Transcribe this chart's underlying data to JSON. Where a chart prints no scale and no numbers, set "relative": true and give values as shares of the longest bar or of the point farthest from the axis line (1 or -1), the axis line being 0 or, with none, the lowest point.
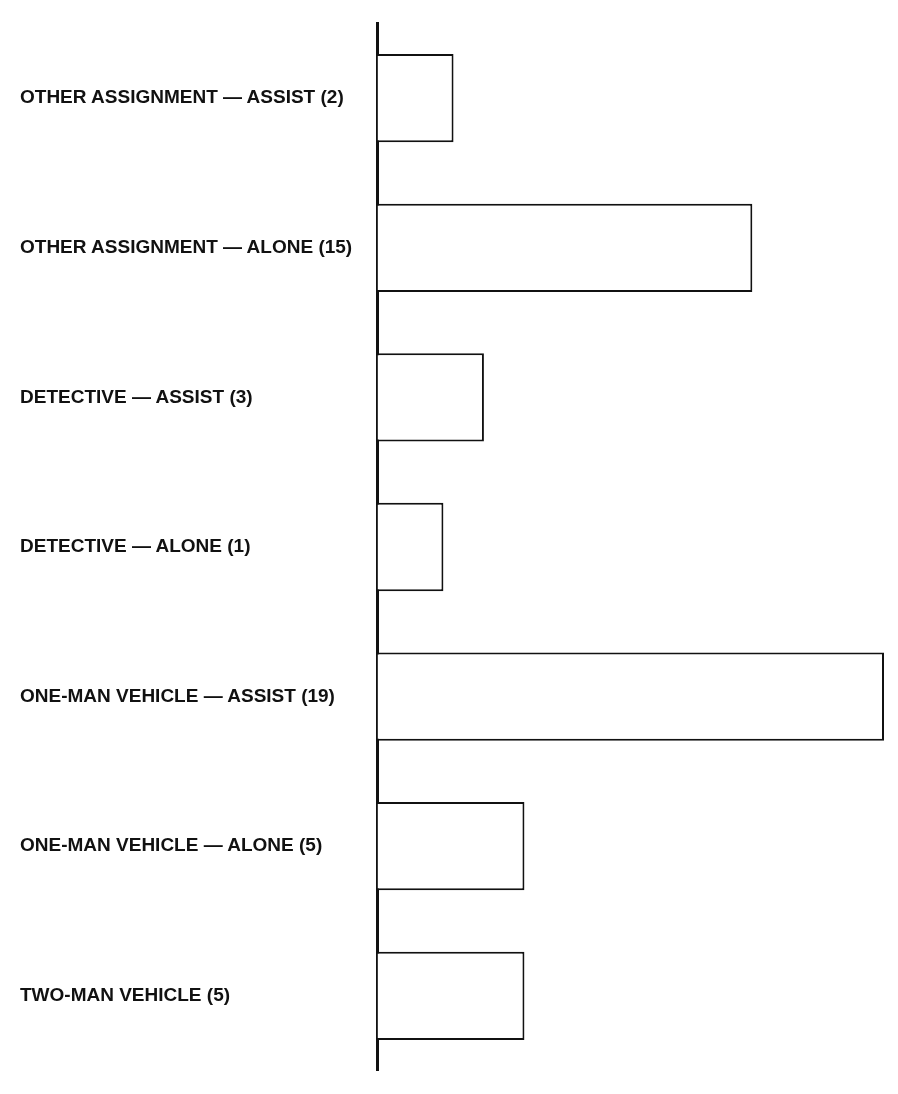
{
  "chart_data": {
    "type": "bar",
    "orientation": "horizontal",
    "relative": true,
    "categories": [
      "OTHER ASSIGNMENT — ASSIST (2)",
      "OTHER ASSIGNMENT — ALONE (15)",
      "DETECTIVE — ASSIST (3)",
      "DETECTIVE — ALONE (1)",
      "ONE-MAN VEHICLE — ASSIST (19)",
      "ONE-MAN VEHICLE — ALONE (5)",
      "TWO-MAN VEHICLE (5)"
    ],
    "values": [
      0.15,
      0.74,
      0.21,
      0.13,
      1,
      0.29,
      0.29
    ],
    "color": "#ffffff",
    "grid": false,
    "legend": false
  }
}
